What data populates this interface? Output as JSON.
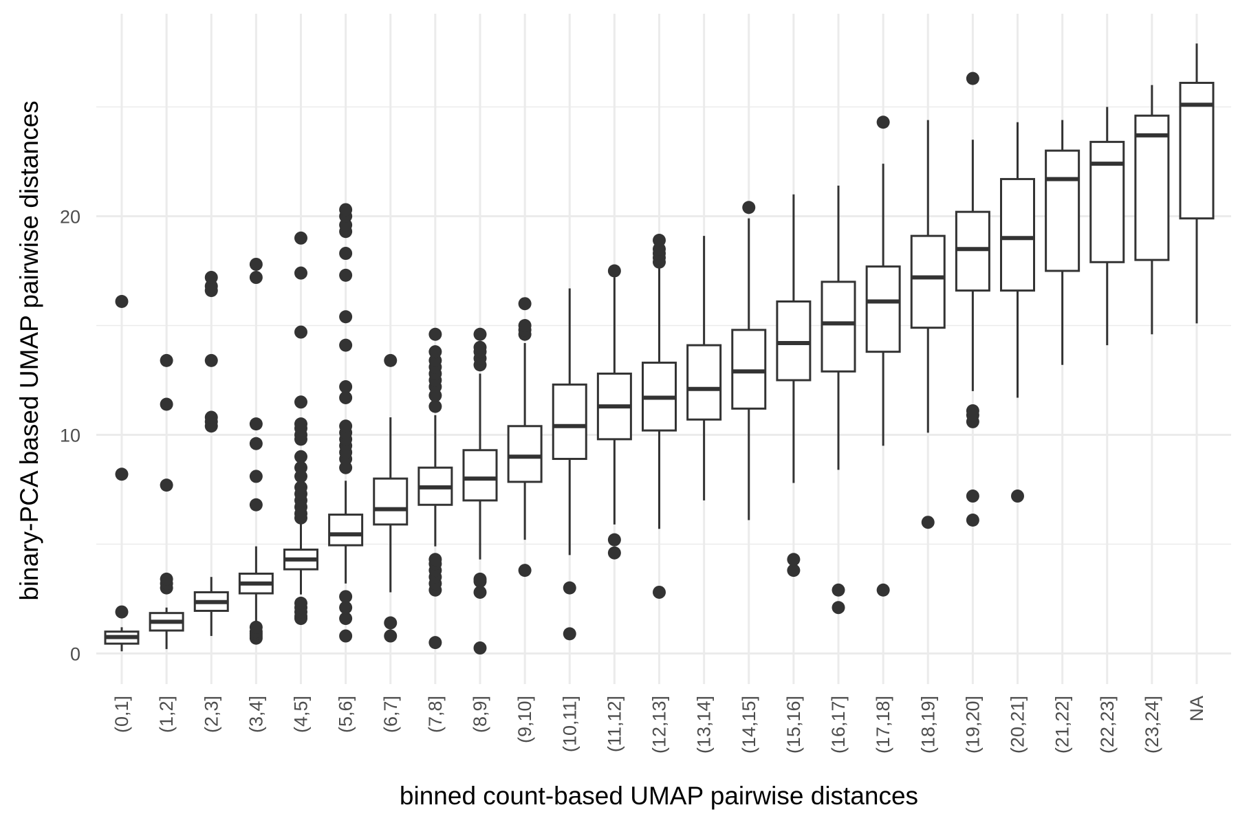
{
  "chart_data": {
    "type": "boxplot",
    "title": "",
    "xlabel": "binned count-based UMAP pairwise distances",
    "ylabel": "binary-PCA based UMAP pairwise distances",
    "ylim": [
      -1.5,
      29
    ],
    "yticks": [
      0,
      10,
      20
    ],
    "minor_yticks": [
      5,
      15,
      25
    ],
    "grid": true,
    "box_color": "#333333",
    "categories": [
      "(0,1]",
      "(1,2]",
      "(2,3]",
      "(3,4]",
      "(4,5]",
      "(5,6]",
      "(6,7]",
      "(7,8]",
      "(8,9]",
      "(9,10]",
      "(10,11]",
      "(11,12]",
      "(12,13]",
      "(13,14]",
      "(14,15]",
      "(15,16]",
      "(16,17]",
      "(17,18]",
      "(18,19]",
      "(19,20]",
      "(20,21]",
      "(21,22]",
      "(22,23]",
      "(23,24]",
      "NA"
    ],
    "boxes": [
      {
        "lower_whisker": 0.1,
        "q1": 0.45,
        "median": 0.75,
        "q3": 1.0,
        "upper_whisker": 1.2,
        "outliers": [
          1.9,
          8.2,
          16.1
        ]
      },
      {
        "lower_whisker": 0.2,
        "q1": 1.05,
        "median": 1.45,
        "q3": 1.85,
        "upper_whisker": 2.1,
        "outliers": [
          3.0,
          3.2,
          3.4,
          7.7,
          11.4,
          13.4
        ]
      },
      {
        "lower_whisker": 0.8,
        "q1": 1.95,
        "median": 2.35,
        "q3": 2.8,
        "upper_whisker": 3.5,
        "outliers": [
          10.4,
          10.6,
          10.8,
          13.4,
          16.6,
          16.8,
          17.2
        ]
      },
      {
        "lower_whisker": 1.3,
        "q1": 2.75,
        "median": 3.2,
        "q3": 3.65,
        "upper_whisker": 4.9,
        "outliers": [
          0.7,
          0.8,
          0.9,
          1.0,
          1.2,
          6.8,
          8.1,
          9.6,
          10.5,
          17.2,
          17.8
        ]
      },
      {
        "lower_whisker": 2.7,
        "q1": 3.85,
        "median": 4.3,
        "q3": 4.75,
        "upper_whisker": 6.1,
        "outliers": [
          1.6,
          1.7,
          1.9,
          2.1,
          2.3,
          6.2,
          6.4,
          6.7,
          7.0,
          7.3,
          7.6,
          8.1,
          8.5,
          9.0,
          9.8,
          10.0,
          10.3,
          10.5,
          11.5,
          14.7,
          17.4,
          19.0
        ]
      },
      {
        "lower_whisker": 3.2,
        "q1": 4.95,
        "median": 5.45,
        "q3": 6.35,
        "upper_whisker": 7.9,
        "outliers": [
          0.8,
          1.6,
          2.1,
          2.6,
          8.5,
          8.9,
          9.2,
          9.5,
          9.8,
          10.1,
          10.4,
          11.7,
          12.2,
          14.1,
          15.4,
          17.3,
          18.3,
          19.3,
          19.6,
          20.0,
          20.3
        ]
      },
      {
        "lower_whisker": 2.8,
        "q1": 5.9,
        "median": 6.6,
        "q3": 8.0,
        "upper_whisker": 10.8,
        "outliers": [
          0.8,
          1.4,
          13.4
        ]
      },
      {
        "lower_whisker": 4.9,
        "q1": 6.8,
        "median": 7.6,
        "q3": 8.5,
        "upper_whisker": 10.9,
        "outliers": [
          0.5,
          2.9,
          3.2,
          3.5,
          3.8,
          4.1,
          4.3,
          11.3,
          11.8,
          12.2,
          12.5,
          12.8,
          13.1,
          13.4,
          13.8,
          14.6
        ]
      },
      {
        "lower_whisker": 4.3,
        "q1": 7.0,
        "median": 8.0,
        "q3": 9.3,
        "upper_whisker": 12.8,
        "outliers": [
          0.25,
          2.8,
          3.3,
          3.4,
          13.2,
          13.5,
          13.8,
          14.0,
          14.6
        ]
      },
      {
        "lower_whisker": 5.2,
        "q1": 7.85,
        "median": 9.0,
        "q3": 10.4,
        "upper_whisker": 14.2,
        "outliers": [
          3.8,
          14.6,
          14.8,
          15.0,
          16.0
        ]
      },
      {
        "lower_whisker": 4.5,
        "q1": 8.9,
        "median": 10.4,
        "q3": 12.3,
        "upper_whisker": 16.7,
        "outliers": [
          0.9,
          3.0
        ]
      },
      {
        "lower_whisker": 5.9,
        "q1": 9.8,
        "median": 11.3,
        "q3": 12.8,
        "upper_whisker": 17.2,
        "outliers": [
          4.6,
          5.2,
          17.5
        ]
      },
      {
        "lower_whisker": 5.7,
        "q1": 10.2,
        "median": 11.7,
        "q3": 13.3,
        "upper_whisker": 17.7,
        "outliers": [
          2.8,
          17.9,
          18.1,
          18.3,
          18.5,
          18.9
        ]
      },
      {
        "lower_whisker": 7.0,
        "q1": 10.7,
        "median": 12.1,
        "q3": 14.1,
        "upper_whisker": 19.1,
        "outliers": []
      },
      {
        "lower_whisker": 6.1,
        "q1": 11.2,
        "median": 12.9,
        "q3": 14.8,
        "upper_whisker": 19.9,
        "outliers": [
          20.4
        ]
      },
      {
        "lower_whisker": 7.8,
        "q1": 12.5,
        "median": 14.2,
        "q3": 16.1,
        "upper_whisker": 21.0,
        "outliers": [
          3.8,
          4.3
        ]
      },
      {
        "lower_whisker": 8.4,
        "q1": 12.9,
        "median": 15.1,
        "q3": 17.0,
        "upper_whisker": 21.4,
        "outliers": [
          2.1,
          2.9
        ]
      },
      {
        "lower_whisker": 9.5,
        "q1": 13.8,
        "median": 16.1,
        "q3": 17.7,
        "upper_whisker": 22.4,
        "outliers": [
          2.9,
          24.3
        ]
      },
      {
        "lower_whisker": 10.1,
        "q1": 14.9,
        "median": 17.2,
        "q3": 19.1,
        "upper_whisker": 24.4,
        "outliers": [
          6.0
        ]
      },
      {
        "lower_whisker": 12.0,
        "q1": 16.6,
        "median": 18.5,
        "q3": 20.2,
        "upper_whisker": 23.5,
        "outliers": [
          6.1,
          7.2,
          10.6,
          10.9,
          11.1,
          26.3
        ]
      },
      {
        "lower_whisker": 11.7,
        "q1": 16.6,
        "median": 19.0,
        "q3": 21.7,
        "upper_whisker": 24.3,
        "outliers": [
          7.2
        ]
      },
      {
        "lower_whisker": 13.2,
        "q1": 17.5,
        "median": 21.7,
        "q3": 23.0,
        "upper_whisker": 24.4,
        "outliers": []
      },
      {
        "lower_whisker": 14.1,
        "q1": 17.9,
        "median": 22.4,
        "q3": 23.4,
        "upper_whisker": 25.0,
        "outliers": []
      },
      {
        "lower_whisker": 14.6,
        "q1": 18.0,
        "median": 23.7,
        "q3": 24.6,
        "upper_whisker": 26.0,
        "outliers": []
      },
      {
        "lower_whisker": 15.1,
        "q1": 19.9,
        "median": 25.1,
        "q3": 26.1,
        "upper_whisker": 27.9,
        "outliers": []
      }
    ]
  }
}
